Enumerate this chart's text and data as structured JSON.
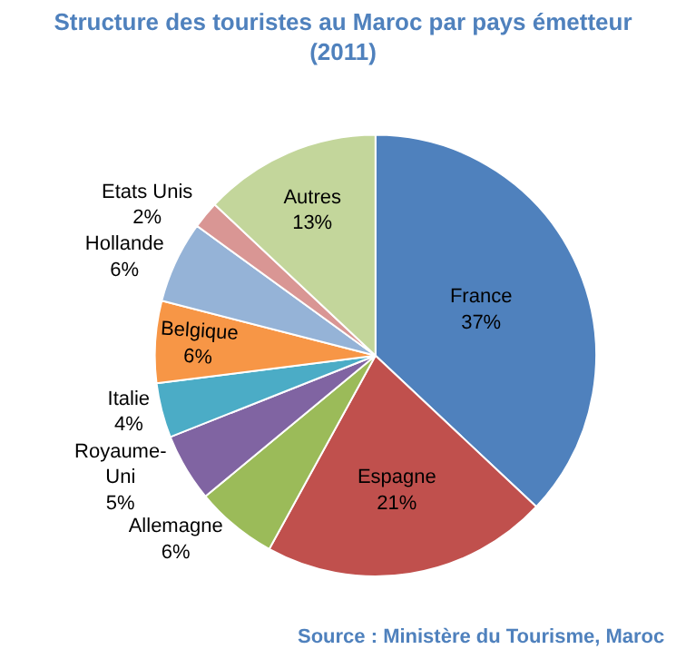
{
  "chart_data": {
    "type": "pie",
    "title": "Structure des touristes au Maroc par pays émetteur (2011)",
    "categories": [
      "France",
      "Espagne",
      "Allemagne",
      "Royaume-Uni",
      "Italie",
      "Belgique",
      "Hollande",
      "Etats Unis",
      "Autres"
    ],
    "values": [
      37,
      21,
      6,
      5,
      4,
      6,
      6,
      2,
      13
    ],
    "value_labels": [
      "37%",
      "21%",
      "6%",
      "5%",
      "4%",
      "6%",
      "6%",
      "2%",
      "13%"
    ],
    "colors": [
      "#4f81bd",
      "#c0504d",
      "#9bbb59",
      "#8064a2",
      "#4bacc6",
      "#f79646",
      "#95b3d7",
      "#d99694",
      "#c3d69b"
    ],
    "annotations": [
      "Source : Ministère du Tourisme, Maroc"
    ],
    "legend": false
  }
}
